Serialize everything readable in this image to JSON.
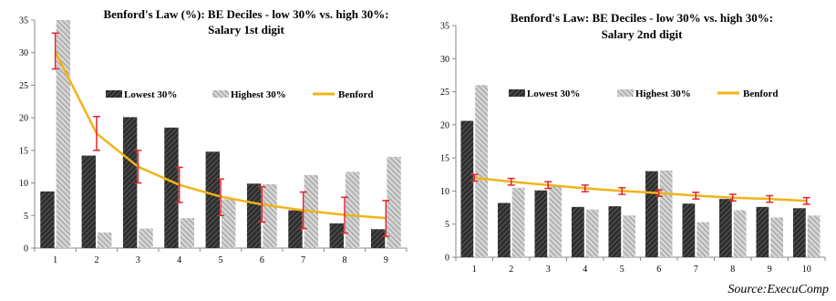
{
  "source": "Source:ExecuComp",
  "colors": {
    "lowest": "#3a3a3a",
    "highest": "#a8a8a8",
    "benford": "#f2b318",
    "error": "#e0262c",
    "axis": "#888888"
  },
  "chart_data": [
    {
      "type": "bar",
      "title_lines": [
        "Benford's Law (%): BE Deciles - low 30% vs. high 30%:",
        "Salary 1st digit"
      ],
      "categories": [
        "1",
        "2",
        "3",
        "4",
        "5",
        "6",
        "7",
        "8",
        "9"
      ],
      "ylim": [
        0,
        35
      ],
      "yticks": [
        "0",
        "5",
        "10",
        "15",
        "20",
        "25",
        "30",
        "35"
      ],
      "legend": [
        "Lowest 30%",
        "Highest 30%",
        "Benford"
      ],
      "series": [
        {
          "name": "Lowest 30%",
          "values": [
            8.7,
            14.2,
            20.1,
            18.5,
            14.8,
            9.9,
            5.8,
            3.8,
            2.9
          ]
        },
        {
          "name": "Highest 30%",
          "values": [
            35.0,
            2.4,
            3.0,
            4.6,
            7.5,
            9.8,
            11.2,
            11.7,
            14.0
          ]
        }
      ],
      "benford": [
        30.1,
        17.6,
        12.5,
        9.7,
        7.9,
        6.7,
        5.8,
        5.1,
        4.6
      ],
      "error_bars": [
        [
          27.5,
          33.0
        ],
        [
          15.0,
          20.2
        ],
        [
          10.0,
          15.0
        ],
        [
          7.0,
          12.4
        ],
        [
          5.0,
          10.6
        ],
        [
          4.0,
          9.4
        ],
        [
          3.0,
          8.6
        ],
        [
          2.3,
          7.8
        ],
        [
          1.8,
          7.3
        ]
      ]
    },
    {
      "type": "bar",
      "title_lines": [
        "Benford's Law: BE Deciles - low 30% vs. high 30%:",
        "Salary 2nd digit"
      ],
      "categories": [
        "1",
        "2",
        "3",
        "4",
        "5",
        "6",
        "7",
        "8",
        "9",
        "10"
      ],
      "ylim": [
        0,
        35
      ],
      "yticks": [
        "0",
        "5",
        "10",
        "15",
        "20",
        "25",
        "30",
        "35"
      ],
      "legend": [
        "Lowest 30%",
        "Highest 30%",
        "Benford"
      ],
      "series": [
        {
          "name": "Lowest 30%",
          "values": [
            20.6,
            8.2,
            10.1,
            7.6,
            7.7,
            13.0,
            8.1,
            8.8,
            7.6,
            7.4
          ]
        },
        {
          "name": "Highest 30%",
          "values": [
            26.0,
            10.5,
            10.9,
            7.2,
            6.3,
            13.1,
            5.3,
            7.1,
            6.0,
            6.3
          ]
        }
      ],
      "benford": [
        12.0,
        11.4,
        10.9,
        10.4,
        10.0,
        9.7,
        9.3,
        9.0,
        8.8,
        8.5
      ],
      "error_bars": [
        [
          11.5,
          12.5
        ],
        [
          10.9,
          11.9
        ],
        [
          10.4,
          11.4
        ],
        [
          9.9,
          10.9
        ],
        [
          9.5,
          10.5
        ],
        [
          9.2,
          10.2
        ],
        [
          8.8,
          9.8
        ],
        [
          8.5,
          9.5
        ],
        [
          8.3,
          9.3
        ],
        [
          8.0,
          9.0
        ]
      ]
    }
  ]
}
